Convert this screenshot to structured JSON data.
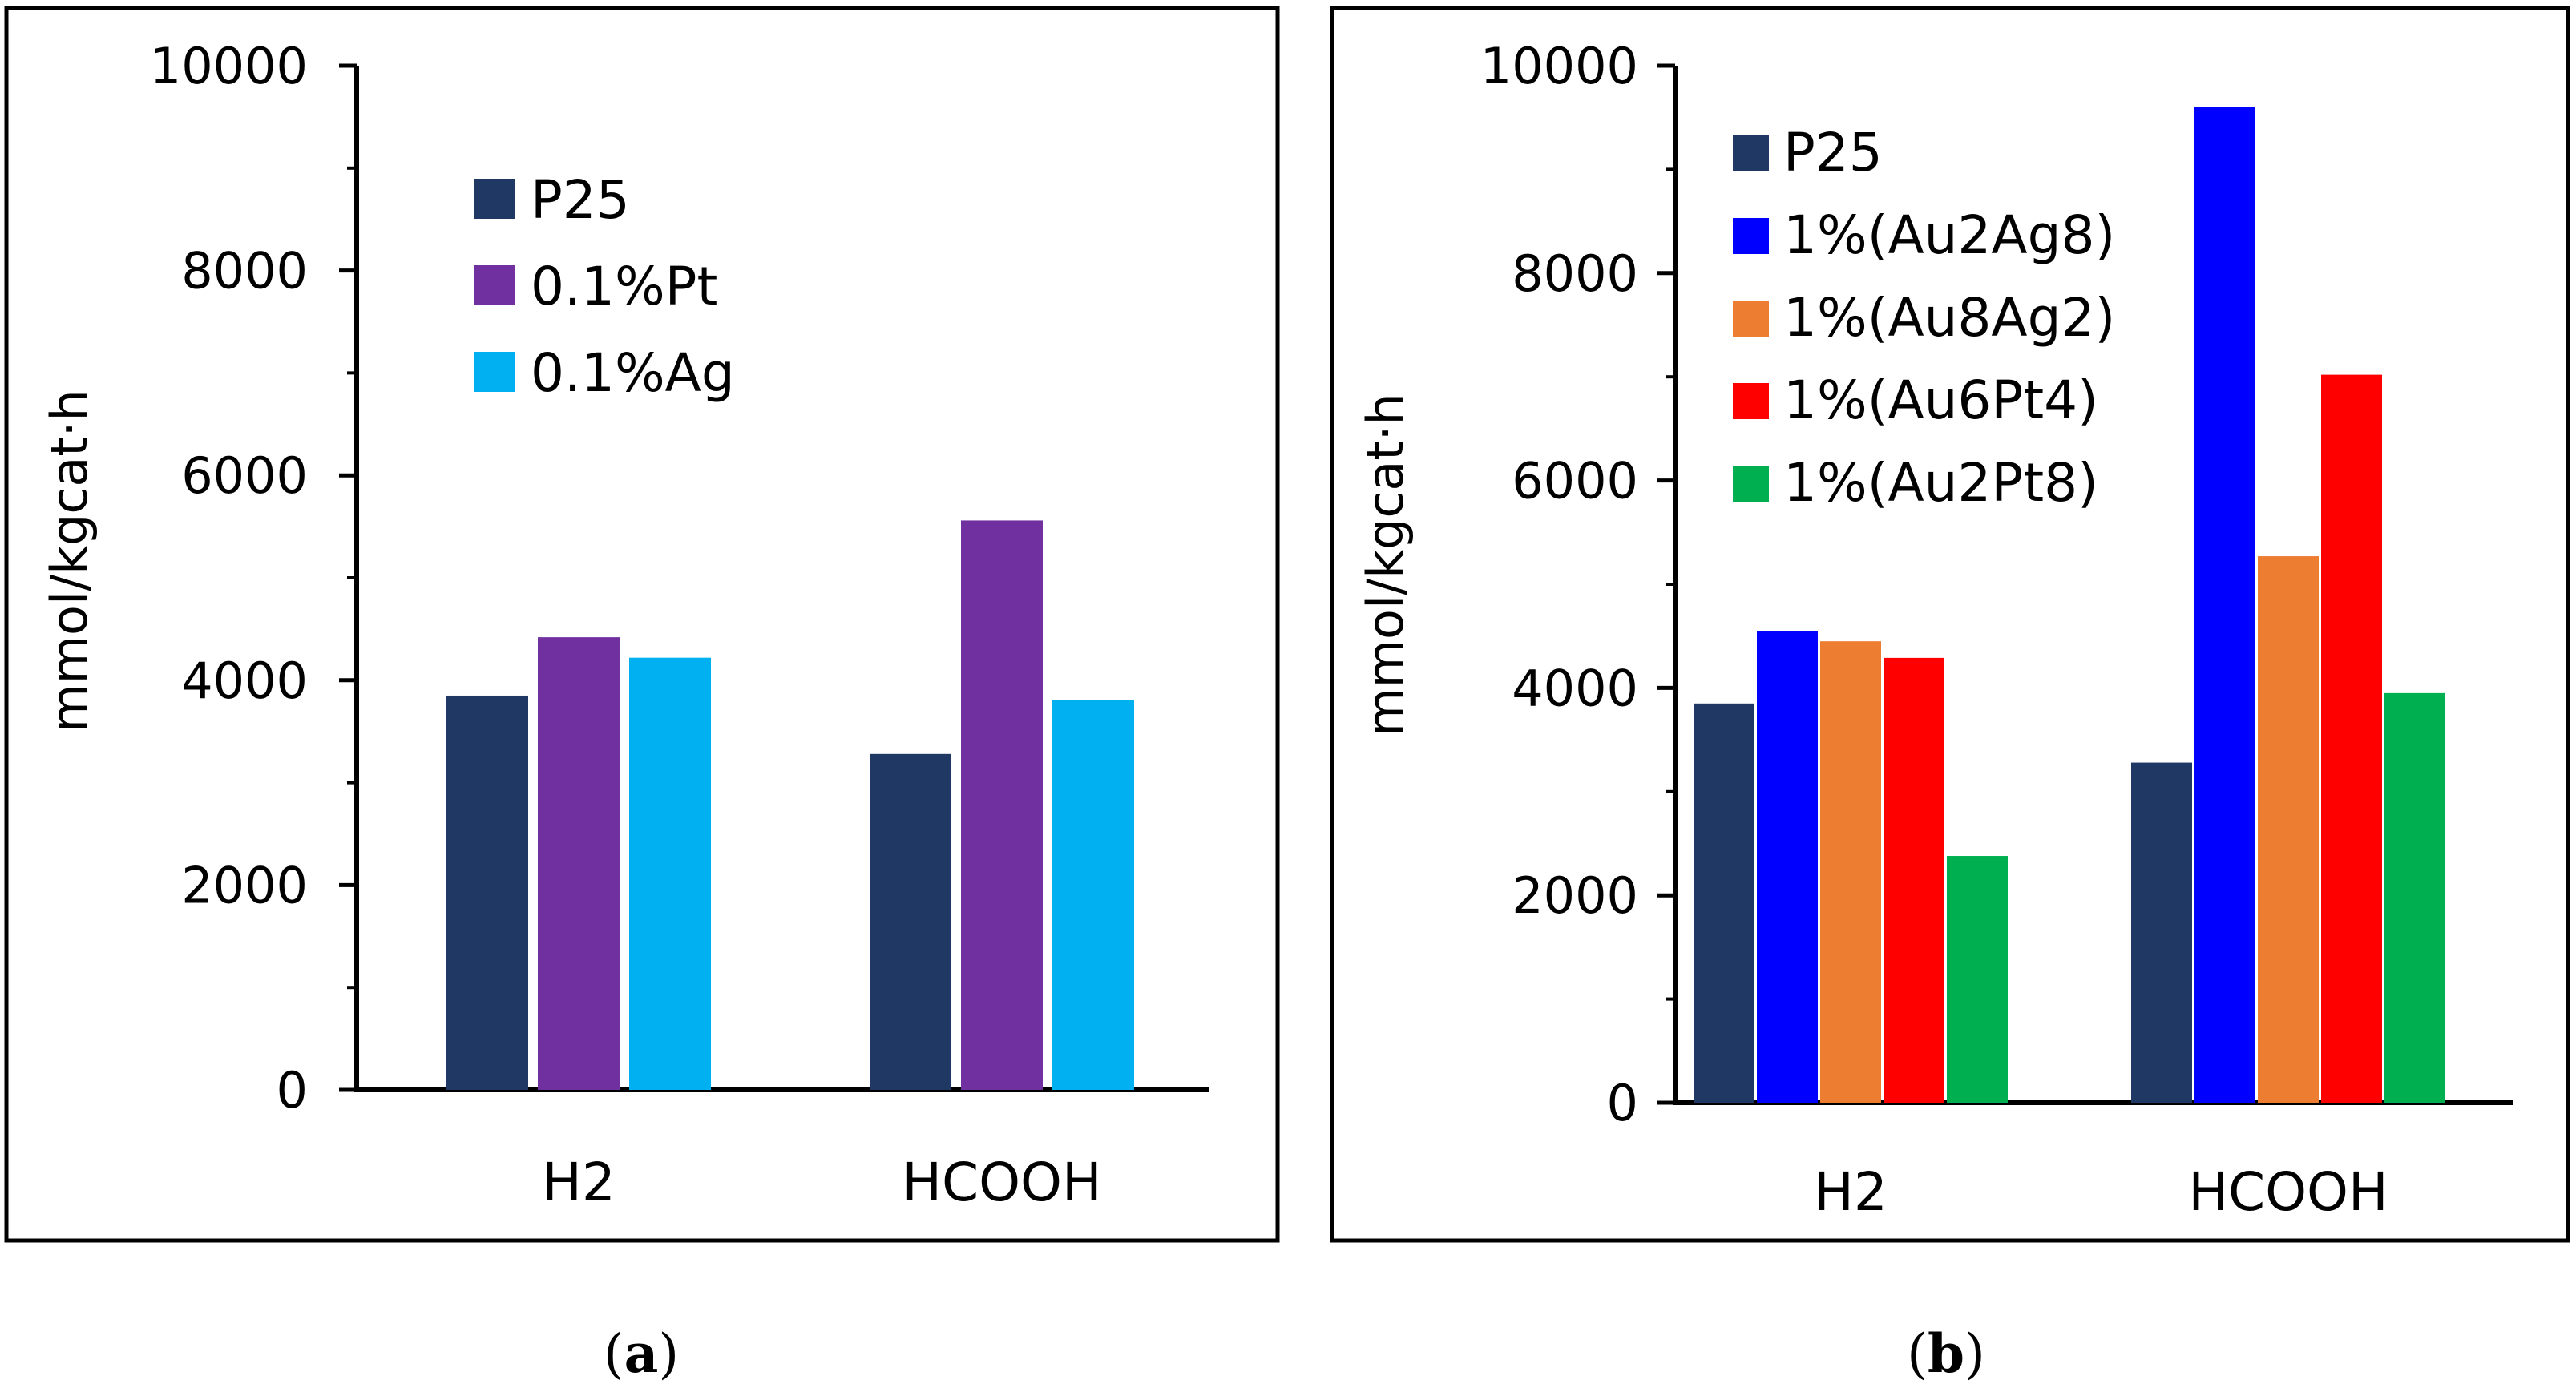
{
  "chart_data": [
    {
      "type": "bar",
      "panel_label": "a",
      "title": "",
      "xlabel": "",
      "ylabel": "mmol/kgcat·h",
      "ylim": [
        0,
        10000
      ],
      "yticks": [
        "0",
        "2000",
        "4000",
        "6000",
        "8000",
        "10000"
      ],
      "grid": false,
      "legend_position": "top-center",
      "categories": [
        "H2",
        "HCOOH"
      ],
      "series": [
        {
          "name": "P25",
          "color": "#203864",
          "values": [
            3850,
            3280
          ]
        },
        {
          "name": "0.1%Pt",
          "color": "#7030A0",
          "values": [
            4420,
            5560
          ]
        },
        {
          "name": "0.1%Ag",
          "color": "#00B0F0",
          "values": [
            4220,
            3810
          ]
        }
      ]
    },
    {
      "type": "bar",
      "panel_label": "b",
      "title": "",
      "xlabel": "",
      "ylabel": "mmol/kgcat·h",
      "ylim": [
        0,
        10000
      ],
      "yticks": [
        "0",
        "2000",
        "4000",
        "6000",
        "8000",
        "10000"
      ],
      "grid": false,
      "legend_position": "top-left",
      "categories": [
        "H2",
        "HCOOH"
      ],
      "series": [
        {
          "name": "P25",
          "color": "#203864",
          "values": [
            3850,
            3280
          ]
        },
        {
          "name": "1%(Au2Ag8)",
          "color": "#0000FF",
          "values": [
            4550,
            9600
          ]
        },
        {
          "name": "1%(Au8Ag2)",
          "color": "#ED7D31",
          "values": [
            4450,
            5270
          ]
        },
        {
          "name": "1%(Au6Pt4)",
          "color": "#FF0000",
          "values": [
            4290,
            7020
          ]
        },
        {
          "name": "1%(Au2Pt8)",
          "color": "#00B050",
          "values": [
            2380,
            3950
          ]
        }
      ]
    }
  ]
}
